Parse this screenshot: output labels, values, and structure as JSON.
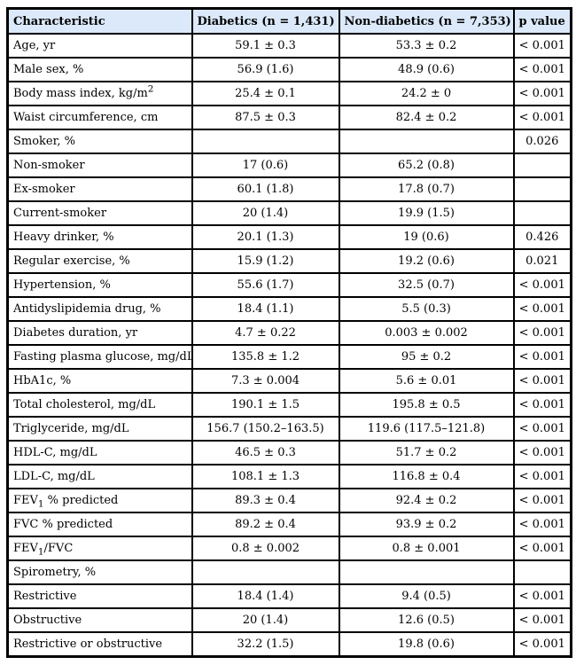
{
  "page": {
    "background_color": "#ffffff",
    "text_color": "#000000"
  },
  "table": {
    "border_color": "#000000",
    "header_bg_color": "#dbe9fa",
    "columns": [
      {
        "id": "characteristic",
        "label": "Characteristic"
      },
      {
        "id": "diabetics",
        "label": "Diabetics (n = 1,431)"
      },
      {
        "id": "non_diabetics",
        "label": "Non-diabetics (n = 7,353)"
      },
      {
        "id": "p_value",
        "label": "p value"
      }
    ],
    "rows": [
      {
        "characteristic": "Age, yr",
        "diabetics": "59.1 ± 0.3",
        "non_diabetics": "53.3 ± 0.2",
        "p_value": "< 0.001"
      },
      {
        "characteristic": "Male sex, %",
        "diabetics": "56.9 (1.6)",
        "non_diabetics": "48.9 (0.6)",
        "p_value": "< 0.001"
      },
      {
        "characteristic": "Body mass index, kg/m^{2}",
        "diabetics": "25.4 ± 0.1",
        "non_diabetics": "24.2 ± 0",
        "p_value": "< 0.001"
      },
      {
        "characteristic": "Waist circumference, cm",
        "diabetics": "87.5 ± 0.3",
        "non_diabetics": "82.4 ± 0.2",
        "p_value": "< 0.001"
      },
      {
        "characteristic": "Smoker, %",
        "diabetics": "",
        "non_diabetics": "",
        "p_value": "0.026"
      },
      {
        "characteristic": "Non-smoker",
        "diabetics": "17 (0.6)",
        "non_diabetics": "65.2 (0.8)",
        "p_value": ""
      },
      {
        "characteristic": "Ex-smoker",
        "diabetics": "60.1 (1.8)",
        "non_diabetics": "17.8 (0.7)",
        "p_value": ""
      },
      {
        "characteristic": "Current-smoker",
        "diabetics": "20 (1.4)",
        "non_diabetics": "19.9 (1.5)",
        "p_value": ""
      },
      {
        "characteristic": "Heavy drinker, %",
        "diabetics": "20.1 (1.3)",
        "non_diabetics": "19 (0.6)",
        "p_value": "0.426"
      },
      {
        "characteristic": "Regular exercise, %",
        "diabetics": "15.9 (1.2)",
        "non_diabetics": "19.2 (0.6)",
        "p_value": "0.021"
      },
      {
        "characteristic": "Hypertension, %",
        "diabetics": "55.6 (1.7)",
        "non_diabetics": "32.5 (0.7)",
        "p_value": "< 0.001"
      },
      {
        "characteristic": "Antidyslipidemia drug, %",
        "diabetics": "18.4 (1.1)",
        "non_diabetics": "5.5 (0.3)",
        "p_value": "< 0.001"
      },
      {
        "characteristic": "Diabetes duration, yr",
        "diabetics": "4.7 ± 0.22",
        "non_diabetics": "0.003 ± 0.002",
        "p_value": "< 0.001"
      },
      {
        "characteristic": "Fasting plasma glucose, mg/dL",
        "diabetics": "135.8 ± 1.2",
        "non_diabetics": "95 ± 0.2",
        "p_value": "< 0.001"
      },
      {
        "characteristic": "HbA1c, %",
        "diabetics": "7.3 ± 0.004",
        "non_diabetics": "5.6 ± 0.01",
        "p_value": "< 0.001"
      },
      {
        "characteristic": "Total cholesterol, mg/dL",
        "diabetics": "190.1 ± 1.5",
        "non_diabetics": "195.8 ± 0.5",
        "p_value": "< 0.001"
      },
      {
        "characteristic": "Triglyceride, mg/dL",
        "diabetics": "156.7 (150.2–163.5)",
        "non_diabetics": "119.6 (117.5–121.8)",
        "p_value": "< 0.001"
      },
      {
        "characteristic": "HDL-C, mg/dL",
        "diabetics": "46.5 ± 0.3",
        "non_diabetics": "51.7 ± 0.2",
        "p_value": "< 0.001"
      },
      {
        "characteristic": "LDL-C, mg/dL",
        "diabetics": "108.1 ± 1.3",
        "non_diabetics": "116.8 ± 0.4",
        "p_value": "< 0.001"
      },
      {
        "characteristic": "FEV_{1} % predicted",
        "diabetics": "89.3 ± 0.4",
        "non_diabetics": "92.4 ± 0.2",
        "p_value": "< 0.001"
      },
      {
        "characteristic": "FVC % predicted",
        "diabetics": "89.2 ± 0.4",
        "non_diabetics": "93.9 ± 0.2",
        "p_value": "< 0.001"
      },
      {
        "characteristic": "FEV_{1}/FVC",
        "diabetics": "0.8 ± 0.002",
        "non_diabetics": "0.8 ± 0.001",
        "p_value": "< 0.001"
      },
      {
        "characteristic": "Spirometry, %",
        "diabetics": "",
        "non_diabetics": "",
        "p_value": ""
      },
      {
        "characteristic": "Restrictive",
        "diabetics": "18.4 (1.4)",
        "non_diabetics": "9.4 (0.5)",
        "p_value": "< 0.001"
      },
      {
        "characteristic": "Obstructive",
        "diabetics": "20 (1.4)",
        "non_diabetics": "12.6 (0.5)",
        "p_value": "< 0.001"
      },
      {
        "characteristic": "Restrictive or obstructive",
        "diabetics": "32.2 (1.5)",
        "non_diabetics": "19.8 (0.6)",
        "p_value": "< 0.001"
      }
    ]
  }
}
